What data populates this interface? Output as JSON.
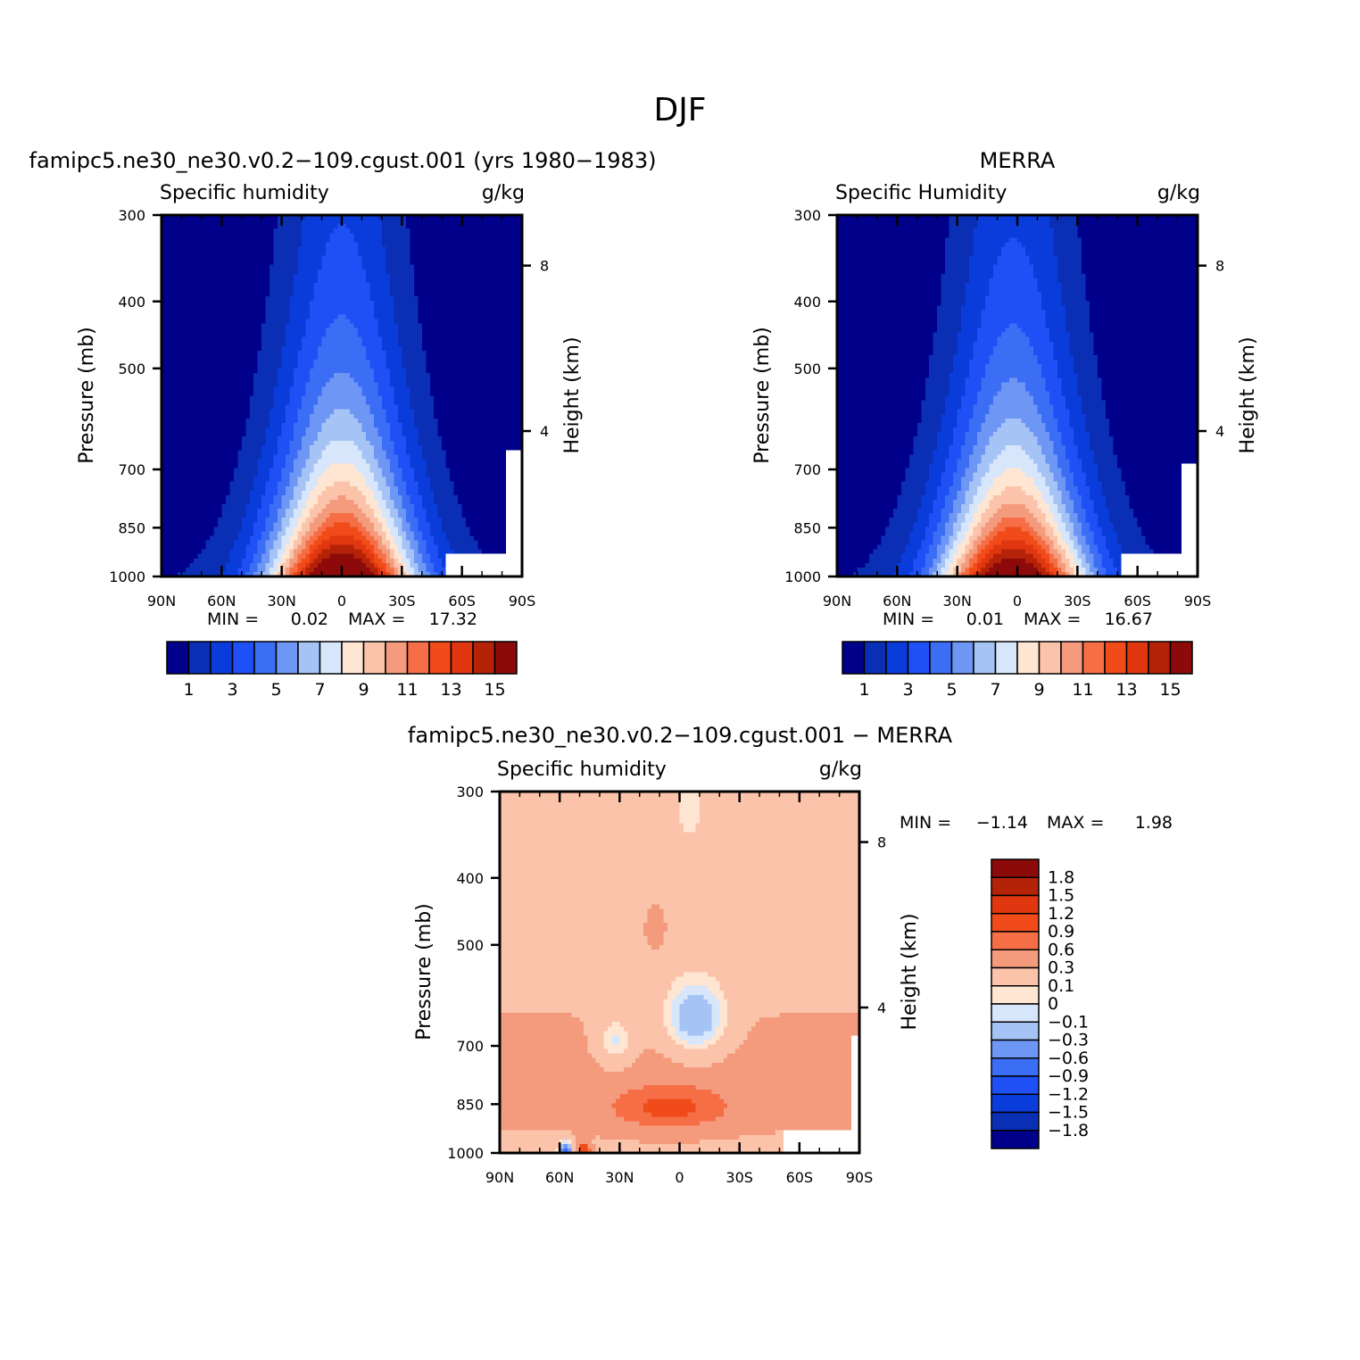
{
  "figure": {
    "title": "DJF"
  },
  "colors": {
    "abs_levels": [
      "#00008b",
      "#0a2fb4",
      "#0a3cdc",
      "#1e50f5",
      "#3c6ef5",
      "#6e96f5",
      "#a5c3f5",
      "#d7e6fa",
      "#ffe6d2",
      "#fac3aa",
      "#f59b7d",
      "#f56e46",
      "#f04b19",
      "#e13710",
      "#b42308",
      "#8c0a0a"
    ],
    "diff_levels": [
      "#00008b",
      "#0a2fb4",
      "#0a3cdc",
      "#1e50f5",
      "#3c6ef5",
      "#6e96f5",
      "#a5c3f5",
      "#d7e6fa",
      "#ffe6d2",
      "#fac3aa",
      "#f59b7d",
      "#f56e46",
      "#f04b19",
      "#e13710",
      "#b42308",
      "#8c0a0a"
    ]
  },
  "chart_data": [
    {
      "id": "model",
      "type": "heatmap",
      "title": "famipc5.ne30_ne30.v0.2−109.cgust.001 (yrs 1980−1983)",
      "variable_label": "Specific humidity",
      "units": "g/kg",
      "ylabel": "Pressure (mb)",
      "ylabel_right": "Height (km)",
      "xlabel": "",
      "x_ticks": [
        "90N",
        "60N",
        "30N",
        "0",
        "30S",
        "60S",
        "90S"
      ],
      "y_ticks": [
        "300",
        "400",
        "500",
        "700",
        "850",
        "1000"
      ],
      "y_right_ticks": [
        "8",
        "4"
      ],
      "min_label": "MIN =",
      "min_value": "0.02",
      "max_label": "MAX =",
      "max_value": "17.32",
      "peak_value": 17.32,
      "peak_lat": 0,
      "top_pressure": 380,
      "colorbar_labels": [
        "1",
        "3",
        "5",
        "7",
        "9",
        "11",
        "13",
        "15"
      ],
      "colorbar_levels": [
        1,
        2,
        3,
        4,
        5,
        6,
        7,
        8,
        9,
        10,
        11,
        12,
        13,
        14,
        15
      ],
      "xlim": [
        90,
        -90
      ],
      "ylim_mb": [
        300,
        1000
      ]
    },
    {
      "id": "obs",
      "type": "heatmap",
      "title": "MERRA",
      "variable_label": "Specific Humidity",
      "units": "g/kg",
      "ylabel": "Pressure (mb)",
      "ylabel_right": "Height (km)",
      "xlabel": "",
      "x_ticks": [
        "90N",
        "60N",
        "30N",
        "0",
        "30S",
        "60S",
        "90S"
      ],
      "y_ticks": [
        "300",
        "400",
        "500",
        "700",
        "850",
        "1000"
      ],
      "y_right_ticks": [
        "8",
        "4"
      ],
      "min_label": "MIN =",
      "min_value": "0.01",
      "max_label": "MAX =",
      "max_value": "16.67",
      "peak_value": 16.67,
      "peak_lat": 2,
      "top_pressure": 380,
      "colorbar_labels": [
        "1",
        "3",
        "5",
        "7",
        "9",
        "11",
        "13",
        "15"
      ],
      "colorbar_levels": [
        1,
        2,
        3,
        4,
        5,
        6,
        7,
        8,
        9,
        10,
        11,
        12,
        13,
        14,
        15
      ],
      "xlim": [
        90,
        -90
      ],
      "ylim_mb": [
        300,
        1000
      ]
    },
    {
      "id": "diff",
      "type": "heatmap",
      "title": "famipc5.ne30_ne30.v0.2−109.cgust.001 − MERRA",
      "variable_label": "Specific humidity",
      "units": "g/kg",
      "ylabel": "Pressure (mb)",
      "ylabel_right": "Height (km)",
      "xlabel": "",
      "x_ticks": [
        "90N",
        "60N",
        "30N",
        "0",
        "30S",
        "60S",
        "90S"
      ],
      "y_ticks": [
        "300",
        "400",
        "500",
        "700",
        "850",
        "1000"
      ],
      "y_right_ticks": [
        "8",
        "4"
      ],
      "min_label": "MIN =",
      "min_value": "−1.14",
      "max_label": "MAX =",
      "max_value": "1.98",
      "colorbar_labels": [
        "1.8",
        "1.5",
        "1.2",
        "0.9",
        "0.6",
        "0.3",
        "0.1",
        "0",
        "−0.1",
        "−0.3",
        "−0.6",
        "−0.9",
        "−1.2",
        "−1.5",
        "−1.8"
      ],
      "colorbar_levels": [
        -1.8,
        -1.5,
        -1.2,
        -0.9,
        -0.6,
        -0.3,
        -0.1,
        0,
        0.1,
        0.3,
        0.6,
        0.9,
        1.2,
        1.5,
        1.8
      ],
      "xlim": [
        90,
        -90
      ],
      "ylim_mb": [
        300,
        1000
      ]
    }
  ]
}
